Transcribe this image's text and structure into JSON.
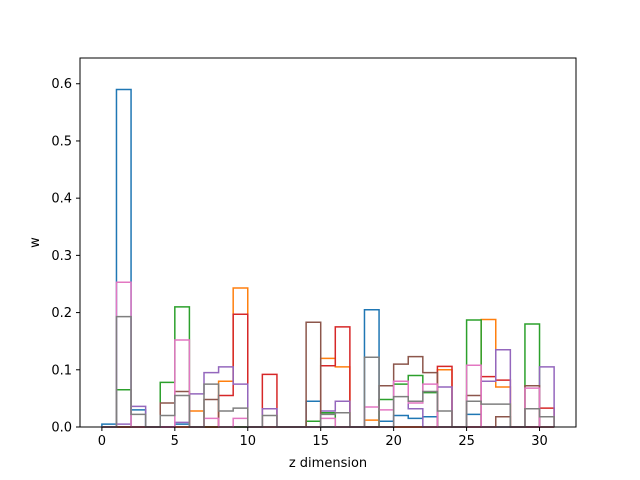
{
  "chart_data": {
    "type": "step-histogram",
    "xlabel": "z dimension",
    "ylabel": "w",
    "xlim": [
      -1.5,
      32.5
    ],
    "ylim": [
      0,
      0.645
    ],
    "xticks": [
      0,
      5,
      10,
      15,
      20,
      25,
      30
    ],
    "yticks": [
      0.0,
      0.1,
      0.2,
      0.3,
      0.4,
      0.5,
      0.6
    ],
    "ytick_labels": [
      "0.0",
      "0.1",
      "0.2",
      "0.3",
      "0.4",
      "0.5",
      "0.6"
    ],
    "bin_edges": [
      0,
      1,
      2,
      3,
      4,
      5,
      6,
      7,
      8,
      9,
      10,
      11,
      12,
      13,
      14,
      15,
      16,
      17,
      18,
      19,
      20,
      21,
      22,
      23,
      24,
      25,
      26,
      27,
      28,
      29,
      30,
      31
    ],
    "series": [
      {
        "color": "#1f77b4",
        "values": [
          0.005,
          0.59,
          0.03,
          0.0,
          0.0,
          0.005,
          0.0,
          0.0,
          0.0,
          0.0,
          0.0,
          0.0,
          0.0,
          0.0,
          0.045,
          0.0,
          0.0,
          0.0,
          0.205,
          0.01,
          0.02,
          0.015,
          0.018,
          0.0,
          0.0,
          0.022,
          0.0,
          0.0,
          0.0,
          0.0,
          0.0
        ]
      },
      {
        "color": "#ff7f0e",
        "values": [
          0.0,
          0.0,
          0.0,
          0.0,
          0.0,
          0.0,
          0.028,
          0.0,
          0.08,
          0.243,
          0.0,
          0.0,
          0.0,
          0.0,
          0.0,
          0.12,
          0.105,
          0.0,
          0.012,
          0.0,
          0.0,
          0.0,
          0.0,
          0.1,
          0.0,
          0.0,
          0.188,
          0.07,
          0.0,
          0.0,
          0.0
        ]
      },
      {
        "color": "#2ca02c",
        "values": [
          0.0,
          0.065,
          0.0,
          0.0,
          0.078,
          0.21,
          0.0,
          0.0,
          0.0,
          0.0,
          0.0,
          0.0,
          0.0,
          0.0,
          0.01,
          0.025,
          0.0,
          0.0,
          0.0,
          0.048,
          0.075,
          0.09,
          0.06,
          0.0,
          0.0,
          0.187,
          0.0,
          0.0,
          0.0,
          0.18,
          0.0
        ]
      },
      {
        "color": "#d62728",
        "values": [
          0.0,
          0.0,
          0.0,
          0.0,
          0.0,
          0.0,
          0.0,
          0.0,
          0.055,
          0.197,
          0.0,
          0.092,
          0.0,
          0.0,
          0.0,
          0.107,
          0.175,
          0.0,
          0.0,
          0.0,
          0.0,
          0.0,
          0.0,
          0.106,
          0.0,
          0.0,
          0.088,
          0.082,
          0.0,
          0.0,
          0.033
        ]
      },
      {
        "color": "#9467bd",
        "values": [
          0.0,
          0.005,
          0.036,
          0.0,
          0.0,
          0.008,
          0.058,
          0.095,
          0.105,
          0.075,
          0.0,
          0.032,
          0.0,
          0.0,
          0.0,
          0.028,
          0.045,
          0.0,
          0.0,
          0.0,
          0.08,
          0.032,
          0.0,
          0.07,
          0.0,
          0.0,
          0.08,
          0.135,
          0.0,
          0.0,
          0.105
        ]
      },
      {
        "color": "#8c564b",
        "values": [
          0.0,
          0.0,
          0.0,
          0.0,
          0.042,
          0.062,
          0.0,
          0.048,
          0.0,
          0.0,
          0.0,
          0.0,
          0.0,
          0.0,
          0.183,
          0.0,
          0.0,
          0.0,
          0.0,
          0.072,
          0.11,
          0.123,
          0.095,
          0.0,
          0.0,
          0.055,
          0.0,
          0.018,
          0.0,
          0.072,
          0.0
        ]
      },
      {
        "color": "#e377c2",
        "values": [
          0.0,
          0.253,
          0.0,
          0.0,
          0.0,
          0.152,
          0.0,
          0.015,
          0.0,
          0.015,
          0.0,
          0.0,
          0.0,
          0.0,
          0.0,
          0.015,
          0.0,
          0.0,
          0.035,
          0.03,
          0.08,
          0.042,
          0.075,
          0.0,
          0.0,
          0.108,
          0.0,
          0.0,
          0.0,
          0.068,
          0.0
        ]
      },
      {
        "color": "#7f7f7f",
        "values": [
          0.0,
          0.193,
          0.022,
          0.0,
          0.02,
          0.055,
          0.0,
          0.075,
          0.028,
          0.033,
          0.0,
          0.02,
          0.0,
          0.0,
          0.0,
          0.022,
          0.025,
          0.0,
          0.122,
          0.0,
          0.053,
          0.045,
          0.062,
          0.028,
          0.0,
          0.045,
          0.04,
          0.04,
          0.0,
          0.032,
          0.018
        ]
      }
    ]
  }
}
